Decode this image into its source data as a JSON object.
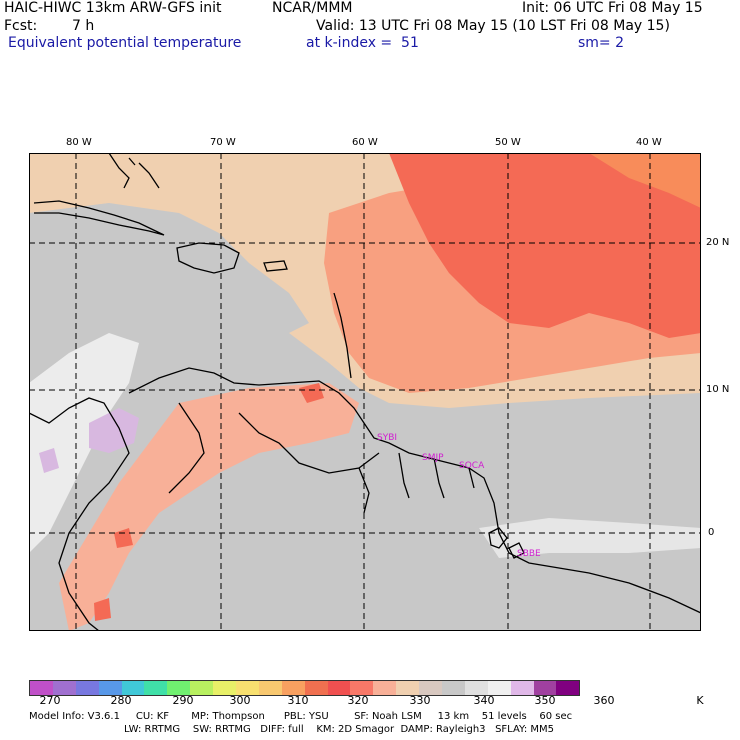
{
  "header": {
    "title_left": "HAIC-HIWC 13km ARW-GFS init",
    "title_center": "NCAR/MMM",
    "init": "Init: 06 UTC Fri 08 May 15",
    "fcst_label": "Fcst:",
    "fcst_value": "7 h",
    "valid": "Valid: 13 UTC Fri 08 May 15 (10 LST Fri 08 May 15)",
    "field": "Equivalent potential temperature",
    "level": "at k-index =  51",
    "smooth": "sm= 2"
  },
  "map": {
    "lon_labels": [
      "80 W",
      "70 W",
      "60 W",
      "50 W",
      "40 W"
    ],
    "lat_labels": [
      "20 N",
      "10 N",
      "0"
    ],
    "city_labels": [
      "SYBI",
      "SMJP",
      "SOCA",
      "SBBE"
    ]
  },
  "colorbar": {
    "colors": [
      "#c050c8",
      "#a070d0",
      "#7878e0",
      "#5898e8",
      "#40c8d8",
      "#40e0a8",
      "#70f070",
      "#b8f060",
      "#e8f068",
      "#f8e070",
      "#f8c870",
      "#f8a060",
      "#f07050",
      "#f05050",
      "#f87868",
      "#f8b098",
      "#f0d0b0",
      "#d8c8c0",
      "#c8c8c8",
      "#e0e0e0",
      "#f0f0f0",
      "#e0b8e8",
      "#a040a0",
      "#800080"
    ],
    "labels": [
      "270",
      "280",
      "290",
      "300",
      "310",
      "320",
      "330",
      "340",
      "350",
      "360",
      "K"
    ]
  },
  "model_info": {
    "line1": "Model Info: V3.6.1     CU: KF       MP: Thompson      PBL: YSU        SF: Noah LSM     13 km    51 levels    60 sec",
    "line2": "LW: RRTMG    SW: RRTMG   DIFF: full    KM: 2D Smagor  DAMP: Rayleigh3   SFLAY: MM5"
  }
}
